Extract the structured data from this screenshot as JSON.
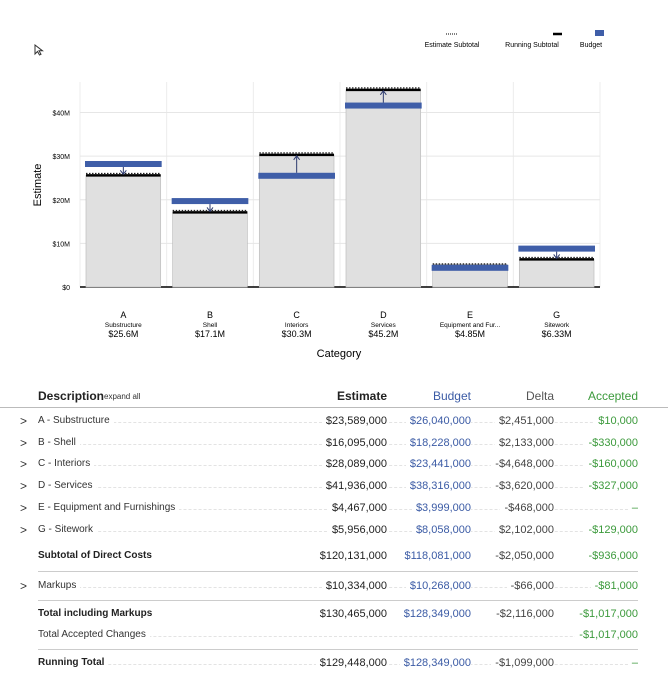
{
  "chart_data": {
    "type": "bar",
    "xlabel": "Category",
    "ylabel": "Estimate",
    "ylim": [
      0,
      47
    ],
    "yticks": [
      {
        "v": 0,
        "label": "$0"
      },
      {
        "v": 10,
        "label": "$10M"
      },
      {
        "v": 20,
        "label": "$20M"
      },
      {
        "v": 30,
        "label": "$30M"
      },
      {
        "v": 40,
        "label": "$40M"
      }
    ],
    "legend_position": "top-right",
    "legend": {
      "estimate_subtotal": "Estimate Subtotal",
      "running_subtotal": "Running Subtotal",
      "budget": "Budget"
    },
    "categories": [
      {
        "letter": "A",
        "name": "Substructure",
        "value_label": "$25.6M",
        "estimate": 25.6,
        "budget": 28.2,
        "running": 25.6
      },
      {
        "letter": "B",
        "name": "Shell",
        "value_label": "$17.1M",
        "estimate": 17.1,
        "budget": 19.7,
        "running": 17.1
      },
      {
        "letter": "C",
        "name": "Interiors",
        "value_label": "$30.3M",
        "estimate": 30.3,
        "budget": 25.5,
        "running": 30.3
      },
      {
        "letter": "D",
        "name": "Services",
        "value_label": "$45.2M",
        "estimate": 45.2,
        "budget": 41.6,
        "running": 45.2
      },
      {
        "letter": "E",
        "name": "Equipment and Fur...",
        "value_label": "$4.85M",
        "estimate": 4.85,
        "budget": 4.4,
        "running": 4.85
      },
      {
        "letter": "G",
        "name": "Sitework",
        "value_label": "$6.33M",
        "estimate": 6.33,
        "budget": 8.8,
        "running": 6.33
      }
    ],
    "colors": {
      "bar": "#e0e0e0",
      "budget": "#3f5ea8",
      "running": "#000000",
      "arrow": "#2c3a6e"
    }
  },
  "table": {
    "headers": {
      "description": "Description",
      "expand_all": "expand all",
      "estimate": "Estimate",
      "budget": "Budget",
      "delta": "Delta",
      "accepted": "Accepted"
    },
    "rows": [
      {
        "chevron": ">",
        "desc": "A - Substructure",
        "estimate": "$23,589,000",
        "budget": "$26,040,000",
        "delta": "$2,451,000",
        "accepted": "$10,000"
      },
      {
        "chevron": ">",
        "desc": "B - Shell",
        "estimate": "$16,095,000",
        "budget": "$18,228,000",
        "delta": "$2,133,000",
        "accepted": "-$330,000"
      },
      {
        "chevron": ">",
        "desc": "C - Interiors",
        "estimate": "$28,089,000",
        "budget": "$23,441,000",
        "delta": "-$4,648,000",
        "accepted": "-$160,000"
      },
      {
        "chevron": ">",
        "desc": "D - Services",
        "estimate": "$41,936,000",
        "budget": "$38,316,000",
        "delta": "-$3,620,000",
        "accepted": "-$327,000"
      },
      {
        "chevron": ">",
        "desc": "E - Equipment and Furnishings",
        "estimate": "$4,467,000",
        "budget": "$3,999,000",
        "delta": "-$468,000",
        "accepted": "–"
      },
      {
        "chevron": ">",
        "desc": "G - Sitework",
        "estimate": "$5,956,000",
        "budget": "$8,058,000",
        "delta": "$2,102,000",
        "accepted": "-$129,000"
      }
    ],
    "subtotal": {
      "desc": "Subtotal of Direct Costs",
      "estimate": "$120,131,000",
      "budget": "$118,081,000",
      "delta": "-$2,050,000",
      "accepted": "-$936,000"
    },
    "markups": {
      "chevron": ">",
      "desc": "Markups",
      "estimate": "$10,334,000",
      "budget": "$10,268,000",
      "delta": "-$66,000",
      "accepted": "-$81,000"
    },
    "total": {
      "desc": "Total including Markups",
      "estimate": "$130,465,000",
      "budget": "$128,349,000",
      "delta": "-$2,116,000",
      "accepted": "-$1,017,000"
    },
    "accepted_changes": {
      "desc": "Total Accepted Changes",
      "accepted": "-$1,017,000"
    },
    "running_total": {
      "desc": "Running Total",
      "estimate": "$129,448,000",
      "budget": "$128,349,000",
      "delta": "-$1,099,000",
      "accepted": "–"
    }
  }
}
